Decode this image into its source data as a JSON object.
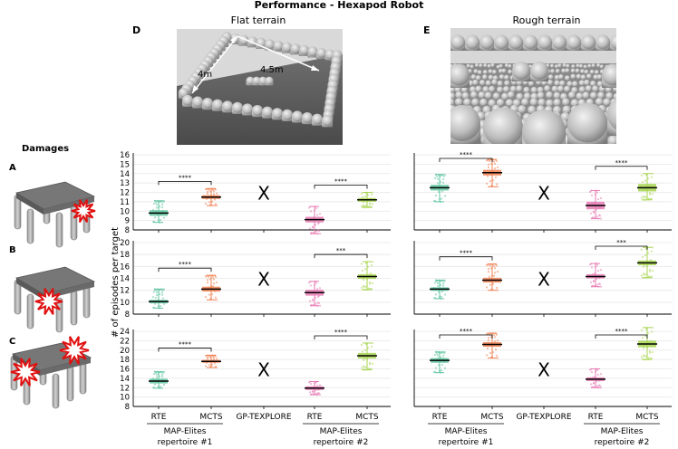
{
  "figure": {
    "title": "Performance - Hexapod Robot",
    "ylabel": "# of episodes per target",
    "damages_title": "Damages",
    "row_letters": [
      "A",
      "B",
      "C"
    ],
    "x_labels": [
      "RTE",
      "MCTS",
      "GP-TEXPLORE",
      "RTE",
      "MCTS"
    ],
    "group_labels": [
      {
        "line1": "MAP-Elites",
        "line2": "repertoire #1"
      },
      {
        "line1": "MAP-Elites",
        "line2": "repertoire #2"
      }
    ],
    "cross_symbol": "X",
    "columns": [
      {
        "letter": "D",
        "title": "Flat terrain",
        "dim_a": "4m",
        "dim_b": "4.5m"
      },
      {
        "letter": "E",
        "title": "Rough terrain"
      }
    ]
  },
  "chart_data": [
    {
      "type": "box",
      "terrain": "Flat terrain",
      "damage": "A",
      "ylim": [
        8,
        16
      ],
      "yticks": [
        8,
        9,
        10,
        11,
        12,
        13,
        14,
        15,
        16
      ],
      "categories": [
        "RTE",
        "MCTS",
        "GP-TEXPLORE",
        "RTE",
        "MCTS"
      ],
      "medians": [
        9.8,
        11.5,
        null,
        9.1,
        11.2
      ],
      "q1": [
        9.5,
        11.3,
        null,
        8.8,
        11.0
      ],
      "q3": [
        10.1,
        11.7,
        null,
        9.4,
        11.4
      ],
      "whisker_low": [
        8.8,
        10.6,
        null,
        7.6,
        10.4
      ],
      "whisker_high": [
        11.1,
        12.4,
        null,
        10.5,
        12.0
      ],
      "colors": [
        "#5fc4a0",
        "#f08050",
        null,
        "#e87bb4",
        "#a8d552"
      ],
      "significance": [
        {
          "from": 0,
          "to": 1,
          "label": "****"
        },
        {
          "from": 3,
          "to": 4,
          "label": "****"
        }
      ]
    },
    {
      "type": "box",
      "terrain": "Flat terrain",
      "damage": "B",
      "ylim": [
        8,
        20
      ],
      "yticks": [
        8,
        10,
        12,
        14,
        16,
        18,
        20
      ],
      "categories": [
        "RTE",
        "MCTS",
        "GP-TEXPLORE",
        "RTE",
        "MCTS"
      ],
      "medians": [
        10.1,
        12.2,
        null,
        11.6,
        14.3
      ],
      "q1": [
        9.8,
        11.8,
        null,
        11.1,
        13.9
      ],
      "q3": [
        10.4,
        12.6,
        null,
        12.1,
        14.7
      ],
      "whisker_low": [
        9.0,
        10.4,
        null,
        9.4,
        12.1
      ],
      "whisker_high": [
        12.2,
        14.5,
        null,
        13.5,
        16.8
      ],
      "colors": [
        "#5fc4a0",
        "#f08050",
        null,
        "#e87bb4",
        "#a8d552"
      ],
      "significance": [
        {
          "from": 0,
          "to": 1,
          "label": "****"
        },
        {
          "from": 3,
          "to": 4,
          "label": "***"
        }
      ]
    },
    {
      "type": "box",
      "terrain": "Flat terrain",
      "damage": "C",
      "ylim": [
        8,
        24
      ],
      "yticks": [
        8,
        10,
        12,
        14,
        16,
        18,
        20,
        22,
        24
      ],
      "categories": [
        "RTE",
        "MCTS",
        "GP-TEXPLORE",
        "RTE",
        "MCTS"
      ],
      "medians": [
        13.4,
        17.6,
        null,
        11.9,
        18.8
      ],
      "q1": [
        12.9,
        17.3,
        null,
        11.5,
        18.2
      ],
      "q3": [
        13.9,
        17.9,
        null,
        12.3,
        19.4
      ],
      "whisker_low": [
        11.9,
        16.3,
        null,
        10.5,
        15.8
      ],
      "whisker_high": [
        15.4,
        18.9,
        null,
        13.3,
        21.5
      ],
      "colors": [
        "#5fc4a0",
        "#f08050",
        null,
        "#e87bb4",
        "#a8d552"
      ],
      "significance": [
        {
          "from": 0,
          "to": 1,
          "label": "****"
        },
        {
          "from": 3,
          "to": 4,
          "label": "****"
        }
      ]
    },
    {
      "type": "box",
      "terrain": "Rough terrain",
      "damage": "A",
      "ylim": [
        8,
        16
      ],
      "yticks": [
        8,
        9,
        10,
        11,
        12,
        13,
        14,
        15,
        16
      ],
      "categories": [
        "RTE",
        "MCTS",
        "GP-TEXPLORE",
        "RTE",
        "MCTS"
      ],
      "medians": [
        12.5,
        14.1,
        null,
        10.6,
        12.5
      ],
      "q1": [
        12.2,
        13.8,
        null,
        10.2,
        12.1
      ],
      "q3": [
        12.8,
        14.4,
        null,
        11.0,
        12.9
      ],
      "whisker_low": [
        11.0,
        12.6,
        null,
        9.2,
        11.2
      ],
      "whisker_high": [
        13.9,
        15.5,
        null,
        12.2,
        14.0
      ],
      "colors": [
        "#5fc4a0",
        "#f08050",
        null,
        "#e87bb4",
        "#a8d552"
      ],
      "significance": [
        {
          "from": 0,
          "to": 1,
          "label": "****"
        },
        {
          "from": 3,
          "to": 4,
          "label": "****"
        }
      ]
    },
    {
      "type": "box",
      "terrain": "Rough terrain",
      "damage": "B",
      "ylim": [
        8,
        20
      ],
      "yticks": [
        8,
        10,
        12,
        14,
        16,
        18,
        20
      ],
      "categories": [
        "RTE",
        "MCTS",
        "GP-TEXPLORE",
        "RTE",
        "MCTS"
      ],
      "medians": [
        12.2,
        13.7,
        null,
        14.3,
        16.6
      ],
      "q1": [
        11.9,
        13.3,
        null,
        14.0,
        16.2
      ],
      "q3": [
        12.5,
        14.1,
        null,
        14.7,
        17.0
      ],
      "whisker_low": [
        10.6,
        12.0,
        null,
        12.6,
        14.1
      ],
      "whisker_high": [
        13.7,
        16.4,
        null,
        16.5,
        19.2
      ],
      "colors": [
        "#5fc4a0",
        "#f08050",
        null,
        "#e87bb4",
        "#a8d552"
      ],
      "significance": [
        {
          "from": 0,
          "to": 1,
          "label": "****"
        },
        {
          "from": 3,
          "to": 4,
          "label": "***"
        }
      ]
    },
    {
      "type": "box",
      "terrain": "Rough terrain",
      "damage": "C",
      "ylim": [
        8,
        24
      ],
      "yticks": [
        8,
        10,
        12,
        14,
        16,
        18,
        20,
        22,
        24
      ],
      "categories": [
        "RTE",
        "MCTS",
        "GP-TEXPLORE",
        "RTE",
        "MCTS"
      ],
      "medians": [
        17.8,
        21.2,
        null,
        13.8,
        21.3
      ],
      "q1": [
        17.3,
        20.7,
        null,
        13.4,
        20.6
      ],
      "q3": [
        18.3,
        21.7,
        null,
        14.2,
        22.0
      ],
      "whisker_low": [
        15.2,
        18.3,
        null,
        12.0,
        18.0
      ],
      "whisker_high": [
        19.6,
        23.6,
        null,
        16.0,
        24.8
      ],
      "colors": [
        "#5fc4a0",
        "#f08050",
        null,
        "#e87bb4",
        "#a8d552"
      ],
      "significance": [
        {
          "from": 0,
          "to": 1,
          "label": "****"
        },
        {
          "from": 3,
          "to": 4,
          "label": "****"
        }
      ]
    }
  ]
}
